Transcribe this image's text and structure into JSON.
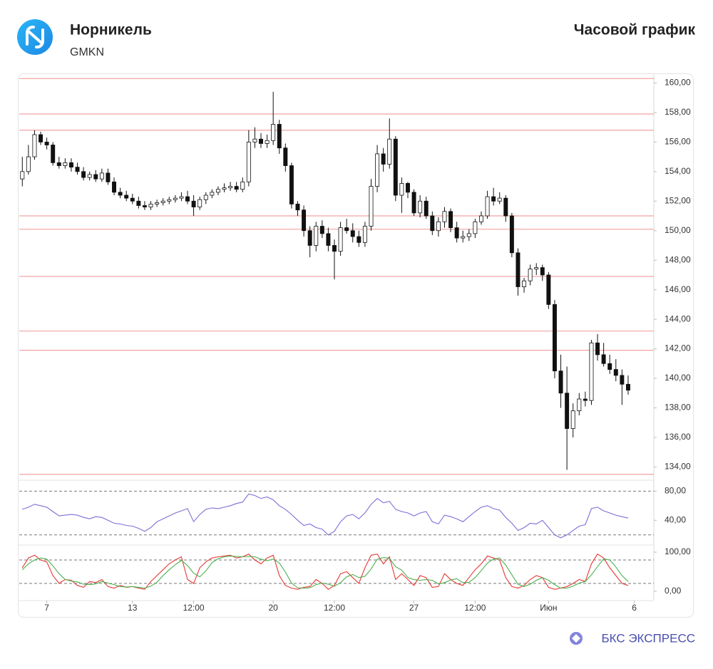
{
  "header": {
    "title": "Норникель",
    "ticker": "GMKN",
    "chart_label": "Часовой график"
  },
  "footer": {
    "brand": "БКС ЭКСПРЕСС"
  },
  "chart_data": [
    {
      "type": "candlestick",
      "xlim": [
        -0.5,
        103.2
      ],
      "ylim": [
        133.2,
        160.6
      ],
      "yticks": [
        {
          "value": 134,
          "label": "134,00"
        },
        {
          "value": 136,
          "label": "136,00"
        },
        {
          "value": 138,
          "label": "138,00"
        },
        {
          "value": 140,
          "label": "140,00"
        },
        {
          "value": 142,
          "label": "142,00"
        },
        {
          "value": 144,
          "label": "144,00"
        },
        {
          "value": 146,
          "label": "146,00"
        },
        {
          "value": 148,
          "label": "148,00"
        },
        {
          "value": 150,
          "label": "150,00"
        },
        {
          "value": 152,
          "label": "152,00"
        },
        {
          "value": 154,
          "label": "154,00"
        },
        {
          "value": 156,
          "label": "156,00"
        },
        {
          "value": 158,
          "label": "158,00"
        },
        {
          "value": 160,
          "label": "160,00"
        }
      ],
      "levels": [
        160.3,
        157.9,
        156.8,
        151.0,
        150.1,
        146.9,
        143.2,
        141.9,
        133.5
      ],
      "level_color": "#f2a3a3",
      "color": "#111111",
      "open": [
        153.5,
        154.0,
        155.0,
        156.5,
        156.0,
        155.8,
        154.6,
        154.4,
        154.6,
        154.3,
        154.0,
        153.6,
        153.8,
        153.5,
        153.9,
        153.3,
        152.6,
        152.4,
        152.2,
        152.0,
        151.7,
        151.6,
        151.8,
        151.9,
        152.0,
        152.1,
        152.2,
        152.3,
        152.0,
        151.6,
        152.1,
        152.4,
        152.6,
        152.8,
        152.9,
        153.0,
        152.8,
        153.3,
        156.0,
        156.2,
        155.9,
        156.1,
        157.2,
        155.6,
        154.4,
        151.8,
        151.4,
        150.0,
        149.0,
        150.3,
        149.8,
        149.0,
        148.6,
        150.2,
        150.0,
        149.6,
        149.2,
        150.3,
        153.0,
        155.2,
        154.5,
        156.2,
        152.4,
        153.2,
        152.6,
        151.2,
        152.0,
        151.0,
        150.0,
        150.6,
        151.3,
        150.2,
        149.5,
        149.6,
        149.8,
        150.6,
        151.0,
        152.3,
        152.0,
        152.2,
        151.0,
        148.5,
        146.2,
        146.6,
        147.4,
        147.5,
        147.0,
        145.0,
        140.5,
        139.0,
        136.6,
        137.8,
        138.6,
        138.5,
        142.4,
        141.6,
        141.0,
        140.6,
        140.2,
        139.6
      ],
      "high": [
        155.0,
        155.8,
        156.8,
        156.7,
        156.3,
        156.0,
        155.0,
        154.9,
        154.9,
        154.6,
        154.3,
        154.0,
        154.1,
        154.2,
        154.2,
        153.6,
        152.9,
        152.7,
        152.5,
        152.3,
        152.0,
        152.0,
        152.1,
        152.2,
        152.3,
        152.4,
        152.6,
        152.7,
        152.4,
        152.3,
        152.6,
        152.8,
        153.0,
        153.2,
        153.3,
        153.3,
        153.6,
        156.8,
        157.0,
        156.6,
        156.5,
        159.4,
        157.5,
        155.9,
        154.6,
        152.0,
        151.7,
        150.3,
        150.6,
        150.7,
        150.2,
        149.4,
        150.6,
        150.8,
        150.5,
        150.0,
        150.6,
        153.5,
        155.8,
        155.6,
        157.6,
        156.4,
        153.6,
        153.3,
        152.8,
        152.4,
        152.3,
        151.3,
        150.9,
        151.6,
        151.5,
        150.6,
        150.0,
        150.1,
        150.8,
        151.3,
        152.7,
        152.9,
        152.6,
        152.4,
        151.2,
        148.8,
        146.8,
        147.7,
        147.8,
        147.7,
        147.2,
        145.3,
        141.6,
        140.8,
        138.3,
        139.0,
        139.1,
        142.6,
        143.0,
        142.4,
        141.6,
        141.3,
        140.6,
        140.2
      ],
      "low": [
        153.0,
        153.8,
        154.8,
        155.8,
        155.5,
        154.4,
        154.2,
        154.2,
        154.0,
        153.8,
        153.4,
        153.4,
        153.3,
        153.3,
        153.1,
        152.4,
        152.2,
        152.0,
        151.8,
        151.5,
        151.4,
        151.4,
        151.6,
        151.7,
        151.8,
        151.9,
        152.0,
        151.8,
        151.0,
        151.4,
        151.8,
        152.2,
        152.4,
        152.6,
        152.7,
        152.6,
        152.6,
        153.0,
        155.6,
        155.6,
        155.6,
        155.8,
        155.2,
        154.0,
        151.5,
        151.0,
        149.6,
        148.2,
        148.6,
        149.5,
        148.6,
        146.7,
        148.3,
        149.8,
        149.2,
        148.9,
        148.9,
        150.0,
        152.6,
        154.0,
        154.2,
        152.0,
        151.2,
        152.2,
        151.0,
        150.9,
        150.8,
        149.7,
        149.6,
        150.2,
        149.9,
        149.2,
        149.2,
        149.3,
        149.5,
        150.4,
        150.8,
        151.7,
        151.8,
        150.6,
        148.2,
        145.6,
        145.8,
        146.3,
        147.0,
        146.6,
        144.7,
        140.0,
        138.0,
        133.8,
        136.0,
        137.5,
        138.1,
        138.2,
        141.2,
        140.8,
        140.3,
        139.8,
        138.2,
        138.9
      ],
      "close": [
        154.0,
        155.0,
        156.5,
        156.0,
        155.8,
        154.6,
        154.4,
        154.6,
        154.3,
        154.0,
        153.6,
        153.8,
        153.5,
        153.9,
        153.3,
        152.6,
        152.4,
        152.2,
        152.0,
        151.7,
        151.6,
        151.8,
        151.9,
        152.0,
        152.1,
        152.2,
        152.3,
        152.0,
        151.6,
        152.1,
        152.4,
        152.6,
        152.8,
        152.9,
        153.0,
        152.8,
        153.3,
        156.0,
        156.2,
        155.9,
        156.1,
        157.2,
        155.6,
        154.4,
        151.8,
        151.4,
        150.0,
        149.0,
        150.3,
        149.8,
        149.0,
        148.6,
        150.2,
        150.0,
        149.6,
        149.2,
        150.3,
        153.0,
        155.2,
        154.5,
        156.2,
        152.4,
        153.2,
        152.6,
        151.2,
        152.0,
        151.0,
        150.0,
        150.6,
        151.3,
        150.2,
        149.5,
        149.6,
        149.8,
        150.6,
        151.0,
        152.3,
        152.0,
        152.2,
        151.0,
        148.5,
        146.2,
        146.6,
        147.4,
        147.5,
        147.0,
        145.0,
        140.5,
        139.0,
        136.6,
        137.8,
        138.6,
        138.5,
        142.4,
        141.6,
        141.0,
        140.6,
        140.2,
        139.6,
        139.2
      ]
    },
    {
      "type": "line",
      "xlim": [
        -0.5,
        103.2
      ],
      "ylim": [
        11,
        93
      ],
      "yticks": [
        {
          "value": 80,
          "label": "80,00"
        },
        {
          "value": 40,
          "label": "40,00"
        }
      ],
      "levels": [
        80,
        20
      ],
      "series": [
        {
          "color": "#7b6fd6",
          "values": [
            55,
            58,
            62,
            60,
            58,
            52,
            46,
            47,
            48,
            47,
            44,
            42,
            45,
            44,
            40,
            36,
            35,
            33,
            32,
            29,
            25,
            30,
            38,
            42,
            46,
            50,
            53,
            56,
            38,
            48,
            55,
            57,
            56,
            58,
            60,
            63,
            65,
            76,
            74,
            70,
            72,
            68,
            60,
            55,
            48,
            40,
            33,
            35,
            30,
            28,
            20,
            25,
            38,
            46,
            48,
            42,
            50,
            62,
            70,
            64,
            66,
            55,
            52,
            50,
            46,
            50,
            52,
            38,
            35,
            47,
            45,
            42,
            38,
            45,
            52,
            58,
            60,
            56,
            54,
            44,
            36,
            26,
            30,
            36,
            35,
            40,
            30,
            20,
            16,
            20,
            26,
            32,
            34,
            56,
            58,
            53,
            50,
            47,
            45,
            43
          ]
        }
      ]
    },
    {
      "type": "line",
      "xlim": [
        -0.5,
        103.2
      ],
      "ylim": [
        -22,
        109
      ],
      "yticks": [
        {
          "value": 100,
          "label": "100,00"
        },
        {
          "value": 0,
          "label": "0,00"
        }
      ],
      "levels": [
        80,
        20
      ],
      "xticks": [
        {
          "value": 4,
          "label": "7"
        },
        {
          "value": 18,
          "label": "13"
        },
        {
          "value": 28,
          "label": "12:00"
        },
        {
          "value": 41,
          "label": "20"
        },
        {
          "value": 51,
          "label": "12:00"
        },
        {
          "value": 64,
          "label": "27"
        },
        {
          "value": 74,
          "label": "12:00"
        },
        {
          "value": 86,
          "label": "Июн"
        },
        {
          "value": 100,
          "label": "6"
        }
      ],
      "series": [
        {
          "color": "#e53935",
          "values": [
            60,
            85,
            92,
            80,
            75,
            40,
            20,
            30,
            28,
            15,
            10,
            25,
            22,
            30,
            12,
            8,
            15,
            10,
            12,
            8,
            5,
            25,
            40,
            55,
            70,
            80,
            88,
            30,
            20,
            60,
            75,
            85,
            88,
            90,
            92,
            85,
            88,
            95,
            80,
            70,
            85,
            92,
            40,
            15,
            8,
            5,
            10,
            12,
            30,
            20,
            5,
            15,
            45,
            50,
            35,
            20,
            60,
            92,
            95,
            70,
            88,
            30,
            45,
            30,
            15,
            40,
            35,
            10,
            12,
            45,
            30,
            20,
            15,
            35,
            55,
            70,
            90,
            85,
            80,
            35,
            12,
            8,
            15,
            30,
            40,
            35,
            10,
            5,
            8,
            12,
            20,
            30,
            25,
            70,
            95,
            85,
            60,
            40,
            20,
            15
          ]
        },
        {
          "color": "#4caf50",
          "values": [
            55,
            70,
            80,
            85,
            82,
            65,
            45,
            30,
            26,
            24,
            18,
            17,
            19,
            25,
            21,
            17,
            12,
            11,
            12,
            10,
            8,
            13,
            23,
            40,
            55,
            68,
            79,
            66,
            46,
            37,
            52,
            73,
            83,
            88,
            90,
            89,
            88,
            89,
            88,
            82,
            78,
            82,
            72,
            49,
            21,
            9,
            8,
            9,
            17,
            21,
            18,
            13,
            22,
            37,
            43,
            35,
            38,
            57,
            82,
            86,
            84,
            63,
            54,
            35,
            30,
            28,
            30,
            28,
            19,
            22,
            29,
            32,
            22,
            23,
            35,
            53,
            72,
            82,
            85,
            67,
            42,
            18,
            12,
            18,
            28,
            35,
            28,
            17,
            8,
            8,
            13,
            21,
            25,
            42,
            63,
            83,
            80,
            62,
            40,
            25
          ]
        }
      ]
    }
  ]
}
